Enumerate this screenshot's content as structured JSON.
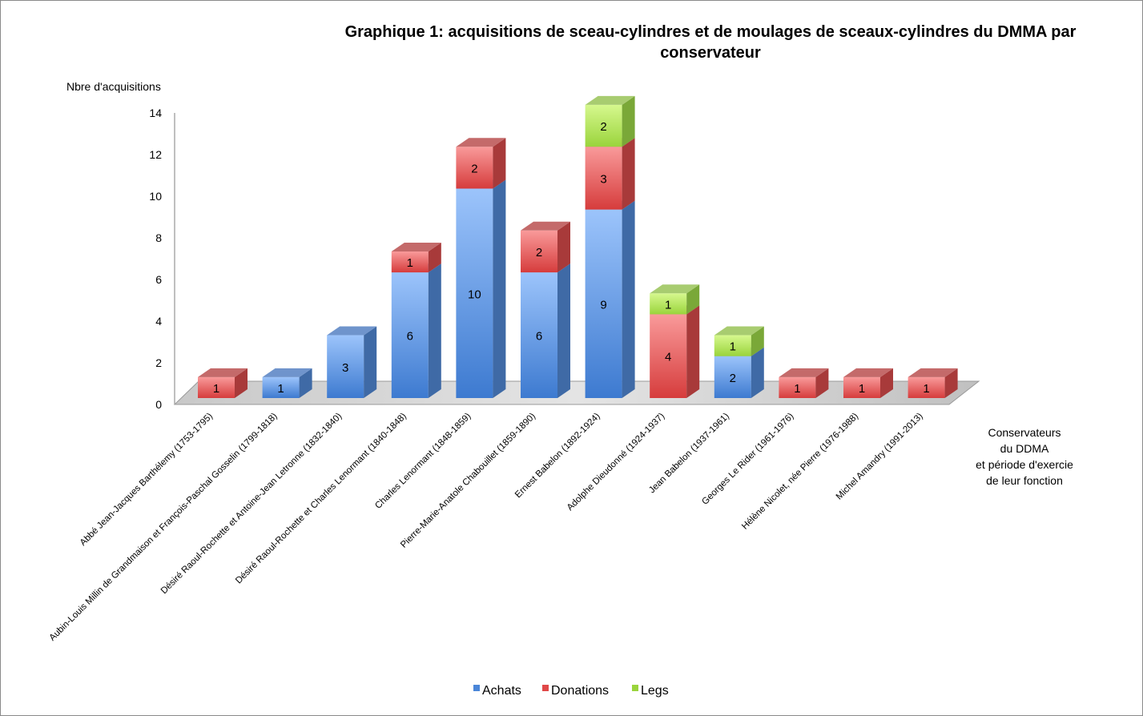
{
  "chart_data": {
    "type": "bar",
    "stacked": true,
    "three_d": true,
    "title_line1": "Graphique 1: acquisitions de sceau-cylindres et de moulages de sceaux-cylindres du DMMA  par",
    "title_line2": "conservateur",
    "ylabel": "Nbre d'acquisitions",
    "xlabel_lines": [
      "Conservateurs",
      "du DDMA",
      "et période d'exercie",
      "de leur fonction"
    ],
    "ylim": [
      0,
      14
    ],
    "yticks": [
      0,
      2,
      4,
      6,
      8,
      10,
      12,
      14
    ],
    "legend_position": "bottom",
    "categories": [
      "Abbé Jean-Jacques Barthélemy (1753-1795)",
      "Aubin-Louis Millin de Grandmaison et François-Paschal Gosselin (1799-1818)",
      "Désiré Raoul-Rochette et Antoine-Jean Letronne (1832-1840)",
      "Désiré Raoul-Rochette et Charles Lenormant (1840-1848)",
      "Charles Lenormant (1848-1859)",
      "Pierre-Marie-Anatole Chabouillet (1859-1890)",
      "Ernest Babelon (1892-1924)",
      "Adolphe Dieudonné (1924-1937)",
      "Jean Babelon (1937-1961)",
      "Georges Le Rider (1961-1976)",
      "Hélène Nicolet, née Pierre (1976-1988)",
      "Michel Amandry (1991-2013)"
    ],
    "series": [
      {
        "name": "Achats",
        "color": "#4a86d8",
        "values": [
          0,
          1,
          3,
          6,
          10,
          6,
          9,
          0,
          2,
          0,
          0,
          0
        ]
      },
      {
        "name": "Donations",
        "color": "#e04848",
        "values": [
          1,
          0,
          0,
          1,
          2,
          2,
          3,
          4,
          0,
          1,
          1,
          1
        ]
      },
      {
        "name": "Legs",
        "color": "#9ad43c",
        "values": [
          0,
          0,
          0,
          0,
          0,
          0,
          2,
          1,
          1,
          0,
          0,
          0
        ]
      }
    ]
  }
}
